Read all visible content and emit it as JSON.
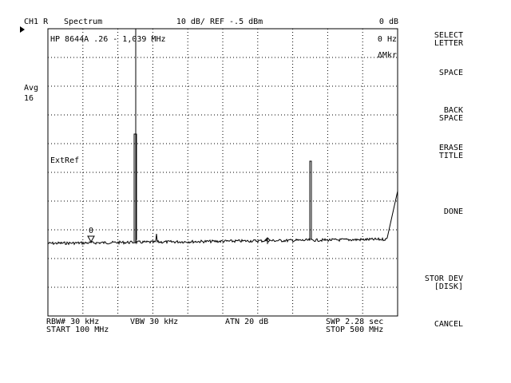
{
  "header": {
    "channel": "CH1 R",
    "mode": "Spectrum",
    "scale": "10 dB/ REF -.5 dBm",
    "offset": "0 dB"
  },
  "screen": {
    "title": "HP 8644A  .26 - 1,039 MHz",
    "marker_freq": "0 Hz",
    "marker_mode": "ΔMkr",
    "ext_ref": "ExtRef",
    "marker_label": "0"
  },
  "averaging": {
    "label": "Avg",
    "count": "16"
  },
  "footer": {
    "rbw": "RBW# 30 kHz",
    "vbw": "VBW 30 kHz",
    "atn": "ATN  20 dB",
    "swp": "SWP  2.28 sec",
    "start": "START  100 MHz",
    "stop": "STOP  500 MHz"
  },
  "softkeys": [
    [
      "SELECT",
      "LETTER"
    ],
    [
      "SPACE"
    ],
    [
      "BACK",
      "SPACE"
    ],
    [
      "ERASE",
      "TITLE"
    ],
    [
      "DONE"
    ],
    [
      "STOR DEV",
      "[DISK]"
    ],
    [
      "CANCEL"
    ]
  ]
}
